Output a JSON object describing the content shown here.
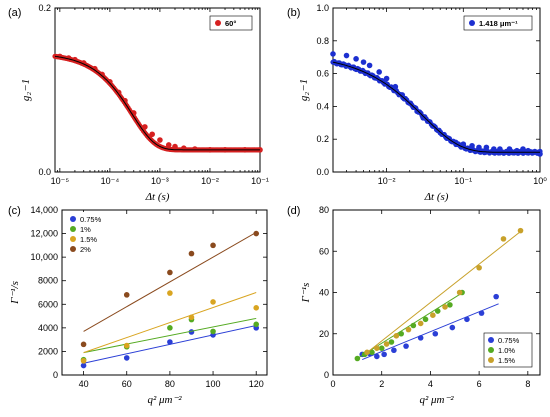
{
  "chart_data": [
    {
      "panel": "(a)",
      "type": "scatter",
      "xscale": "log",
      "xlim": [
        8e-06,
        0.1
      ],
      "ylim": [
        0.0,
        0.2
      ],
      "xticks": [
        "10⁻⁵",
        "10⁻⁴",
        "10⁻³",
        "10⁻²",
        "10⁻¹"
      ],
      "yticks": [
        "0.0",
        "0.2"
      ],
      "xlabel": "Δt (s)",
      "ylabel": "g₂−1",
      "legend": [
        "60°"
      ],
      "legend_position": "top-right",
      "marker_color": "#d62020",
      "fit_color": "#000000",
      "fit": {
        "model": "stretched-exponential",
        "a": 0.118,
        "tau": 0.00028,
        "beta": 0.95,
        "c": 0.027
      },
      "x": [
        1e-05,
        1.5e-05,
        2e-05,
        3e-05,
        5e-05,
        7e-05,
        0.0001,
        0.00015,
        0.0002,
        0.0003,
        0.0005,
        0.0007,
        0.001,
        0.0015,
        0.002,
        0.003,
        0.005,
        0.01,
        0.02,
        0.05,
        0.1
      ],
      "y": [
        0.141,
        0.139,
        0.137,
        0.133,
        0.126,
        0.119,
        0.11,
        0.097,
        0.087,
        0.072,
        0.055,
        0.046,
        0.039,
        0.033,
        0.031,
        0.029,
        0.028,
        0.027,
        0.027,
        0.027,
        0.027
      ]
    },
    {
      "panel": "(b)",
      "type": "scatter",
      "xscale": "log",
      "xlim": [
        0.002,
        1
      ],
      "ylim": [
        0.0,
        1.0
      ],
      "xticks": [
        "10⁻²",
        "10⁻¹",
        "10⁰"
      ],
      "yticks": [
        "0.0",
        "0.2",
        "0.4",
        "0.6",
        "0.8",
        "1.0"
      ],
      "xlabel": "Δt (s)",
      "ylabel": "g₂−1",
      "legend": [
        "1.418 μm⁻¹"
      ],
      "legend_position": "top-right",
      "marker_color": "#1c2fd0",
      "fit_color": "#000000",
      "fit": {
        "model": "stretched-exponential",
        "a": 0.6,
        "tau": 0.03,
        "beta": 0.9,
        "c": 0.12
      },
      "x": [
        0.002,
        0.003,
        0.004,
        0.005,
        0.006,
        0.008,
        0.01,
        0.013,
        0.016,
        0.02,
        0.025,
        0.03,
        0.04,
        0.05,
        0.06,
        0.08,
        0.1,
        0.13,
        0.16,
        0.2,
        0.25,
        0.3,
        0.4,
        0.5,
        0.6,
        0.7,
        0.8,
        0.9,
        1.0
      ],
      "y": [
        0.72,
        0.71,
        0.69,
        0.67,
        0.65,
        0.61,
        0.57,
        0.52,
        0.47,
        0.42,
        0.37,
        0.33,
        0.28,
        0.24,
        0.21,
        0.18,
        0.17,
        0.16,
        0.15,
        0.15,
        0.14,
        0.14,
        0.14,
        0.13,
        0.14,
        0.13,
        0.12,
        0.12,
        0.11
      ]
    },
    {
      "panel": "(c)",
      "type": "scatter",
      "xlim": [
        30,
        125
      ],
      "ylim": [
        0,
        14000
      ],
      "xticks": [
        "40",
        "60",
        "80",
        "100",
        "120"
      ],
      "yticks": [
        "0",
        "2000",
        "4000",
        "6000",
        "8000",
        "10,000",
        "12,000",
        "14,000"
      ],
      "xlabel": "q² μm⁻²",
      "ylabel": "Γ⁻¹/s",
      "legend_position": "top-left",
      "x": [
        40,
        60,
        80,
        90,
        100,
        120
      ],
      "series": [
        {
          "name": "0.75%",
          "color": "#2b3fd6",
          "values": [
            800,
            1450,
            2800,
            3650,
            3400,
            4000
          ],
          "fit": [
            1000,
            4200
          ]
        },
        {
          "name": "1%",
          "color": "#55aa22",
          "values": [
            1300,
            2400,
            4000,
            4700,
            3700,
            4300
          ],
          "fit": [
            1900,
            4800
          ]
        },
        {
          "name": "1.5%",
          "color": "#d9a521",
          "values": [
            1200,
            2500,
            6950,
            4900,
            6200,
            5700
          ],
          "fit": [
            1900,
            7000
          ]
        },
        {
          "name": "2%",
          "color": "#8a4a1e",
          "values": [
            2600,
            6800,
            8700,
            10300,
            11000,
            12000
          ],
          "fit": [
            3700,
            12100
          ]
        }
      ]
    },
    {
      "panel": "(d)",
      "type": "scatter",
      "xlim": [
        0,
        8.5
      ],
      "ylim": [
        0,
        80
      ],
      "xticks": [
        "0",
        "2",
        "4",
        "6",
        "8"
      ],
      "yticks": [
        "0",
        "20",
        "40",
        "60",
        "80"
      ],
      "xlabel": "q² μm⁻²",
      "ylabel": "Γ⁻¹s",
      "legend_position": "bottom-right",
      "series": [
        {
          "name": "0.75%",
          "color": "#2b3fd6",
          "x": [
            1.2,
            1.5,
            1.8,
            2.1,
            2.5,
            3.0,
            3.6,
            4.2,
            4.9,
            5.5,
            6.1,
            6.7
          ],
          "values": [
            10,
            10.5,
            9,
            10,
            12,
            14,
            18,
            20,
            23,
            27,
            30,
            38
          ],
          "fit": [
            [
              1.2,
              7.5
            ],
            [
              6.8,
              34.5
            ]
          ]
        },
        {
          "name": "1.0%",
          "color": "#55aa22",
          "x": [
            1.0,
            1.3,
            1.6,
            2.0,
            2.4,
            2.8,
            3.3,
            3.8,
            4.3,
            4.8,
            5.3
          ],
          "values": [
            8,
            10,
            11,
            13,
            16,
            20,
            24,
            27,
            31,
            34,
            40
          ],
          "fit": [
            [
              1.0,
              8.0
            ],
            [
              5.4,
              40.5
            ]
          ]
        },
        {
          "name": "1.5%",
          "color": "#c8a12a",
          "x": [
            1.4,
            1.8,
            2.2,
            2.6,
            3.1,
            3.6,
            4.1,
            4.6,
            5.2,
            6.0,
            7.0,
            7.7
          ],
          "values": [
            11,
            13,
            15,
            19,
            22,
            25,
            29,
            33,
            40,
            52,
            66,
            70
          ],
          "fit": [
            [
              1.3,
              10.0
            ],
            [
              7.8,
              70.5
            ]
          ]
        }
      ]
    }
  ]
}
